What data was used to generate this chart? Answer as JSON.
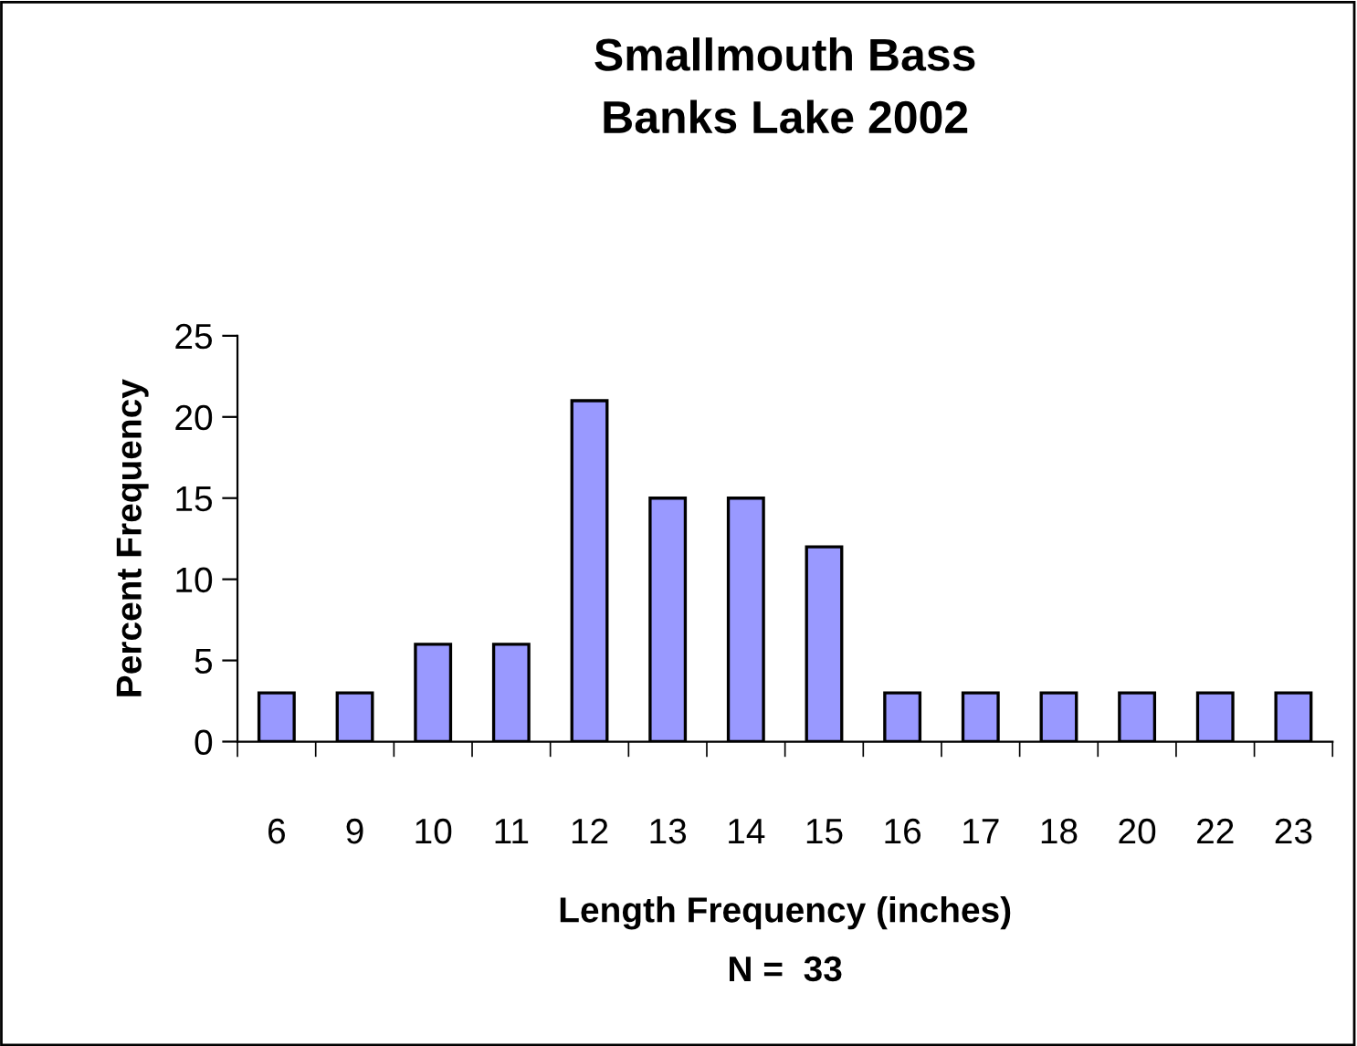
{
  "chart_data": {
    "type": "bar",
    "title": "Smallmouth Bass\nBanks Lake 2002",
    "xlabel": "Length Frequency (inches)\nN =  33",
    "ylabel": "Percent Frequency",
    "categories": [
      "6",
      "9",
      "10",
      "11",
      "12",
      "13",
      "14",
      "15",
      "16",
      "17",
      "18",
      "20",
      "22",
      "23"
    ],
    "values": [
      3,
      3,
      6,
      6,
      21,
      15,
      15,
      12,
      3,
      3,
      3,
      3,
      3,
      3
    ],
    "color": "#9999ff",
    "ylim": [
      0,
      25
    ],
    "yticks": [
      0,
      5,
      10,
      15,
      20,
      25
    ],
    "grid": false,
    "legend": false
  }
}
